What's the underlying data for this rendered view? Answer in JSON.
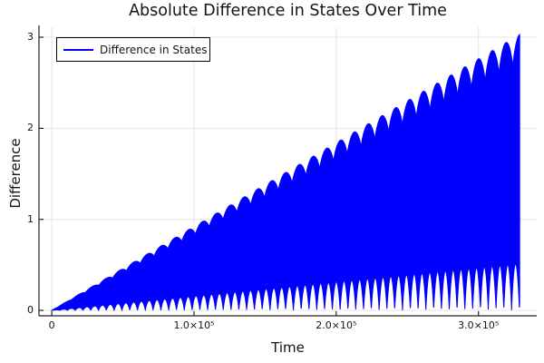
{
  "chart_data": {
    "type": "line",
    "title": "Absolute Difference in States Over Time",
    "xlabel": "Time",
    "ylabel": "Difference",
    "grid": true,
    "legend_position": "top-left",
    "xlim": [
      -9000,
      341000
    ],
    "ylim": [
      -0.06,
      3.11
    ],
    "x_ticks": [
      {
        "value": 0,
        "label": "0"
      },
      {
        "value": 100000,
        "label": "1.0×10⁵"
      },
      {
        "value": 200000,
        "label": "2.0×10⁵"
      },
      {
        "value": 300000,
        "label": "3.0×10⁵"
      }
    ],
    "y_ticks": [
      {
        "value": 0,
        "label": "0"
      },
      {
        "value": 1,
        "label": "1"
      },
      {
        "value": 2,
        "label": "2"
      },
      {
        "value": 3,
        "label": "3"
      }
    ],
    "series": [
      {
        "name": "Difference in States",
        "color": "#0000ff",
        "style": "dense oscillation rendered as solid fill between lower and upper envelopes",
        "t_start": 0,
        "t_end": 329000,
        "peak_value": 3.03,
        "envelope_slope_per_t": 9.21e-06,
        "upper_envelope": {
          "modulation_period_t": 9700,
          "dip_depth_ratio": 0.11,
          "shape_power": 0.7
        },
        "lower_envelope": {
          "spike_period_t": 5480,
          "lift_ratio": 0.17,
          "shape_power": 0.8
        },
        "upper_envelope_samples": {
          "t": [
            0,
            50000,
            100000,
            150000,
            200000,
            250000,
            300000,
            329000
          ],
          "y": [
            0,
            0.46,
            0.92,
            1.38,
            1.84,
            2.3,
            2.76,
            3.03
          ]
        }
      }
    ]
  },
  "colors": {
    "series_blue": "#0000ff",
    "grid": "#e4e4e4",
    "axis": "#222222",
    "text": "#141414",
    "background": "#ffffff"
  }
}
